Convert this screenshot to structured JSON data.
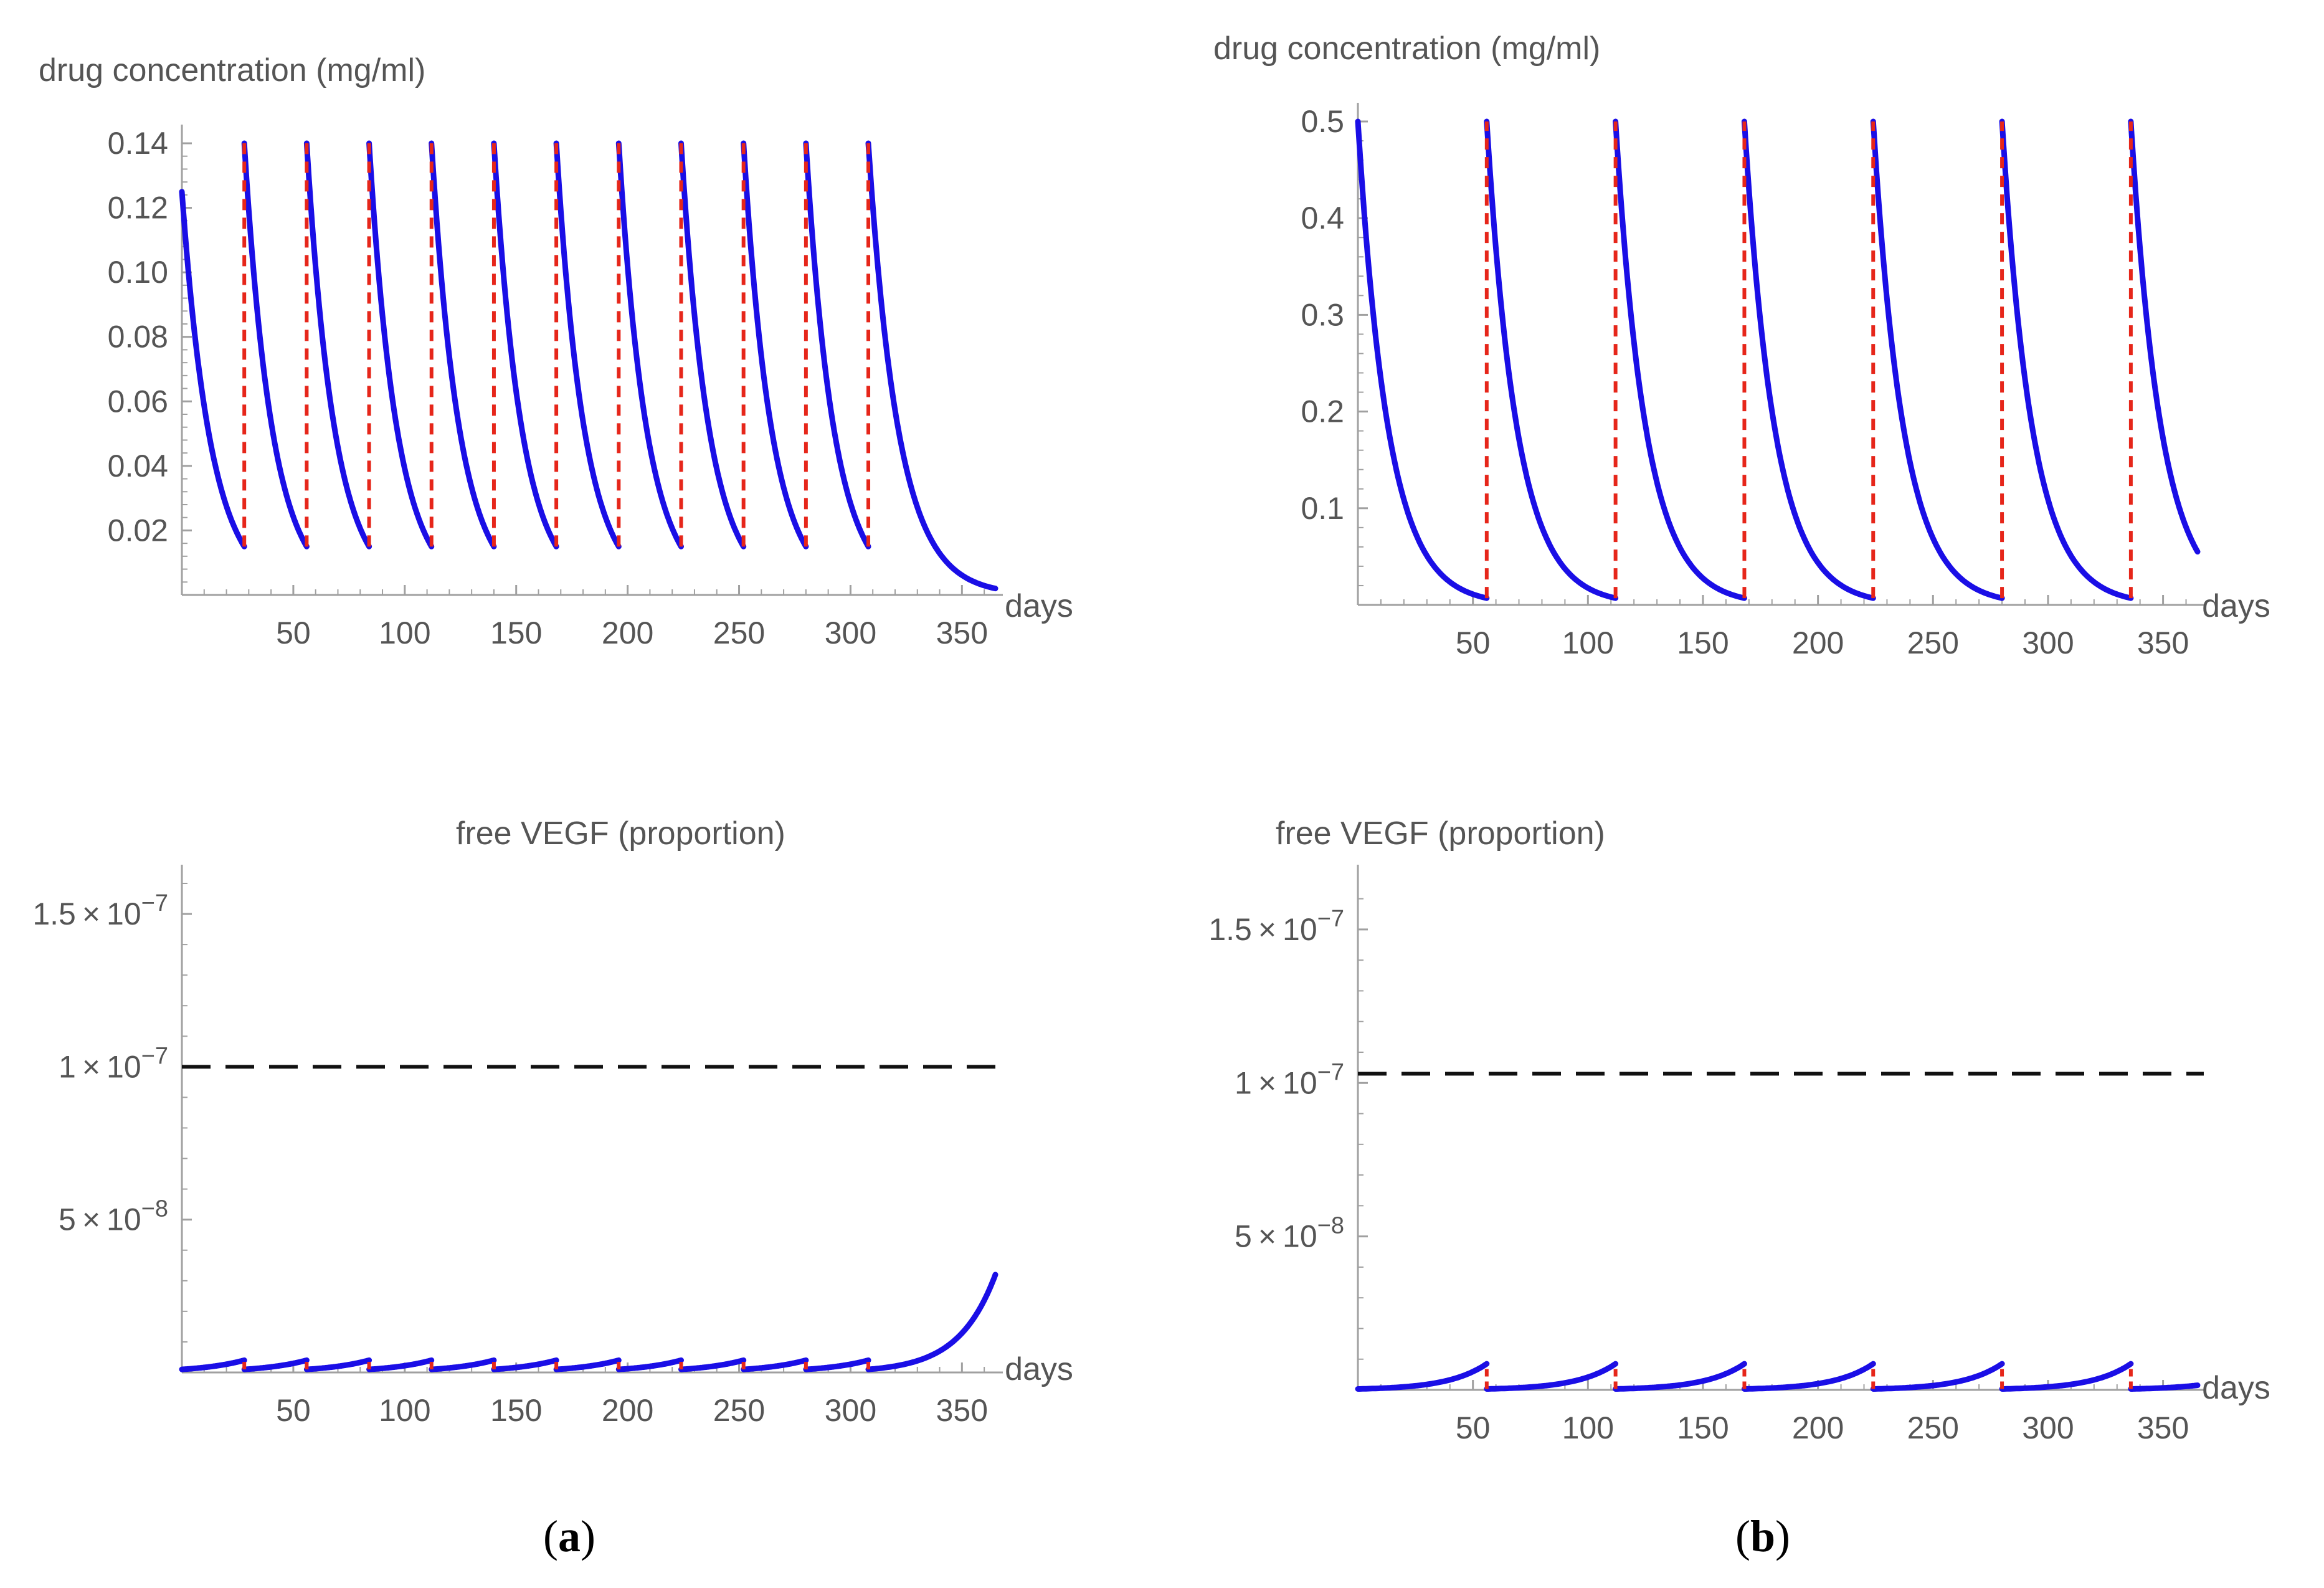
{
  "figure": {
    "panel_labels": [
      "(a)",
      "(b)"
    ]
  },
  "colors": {
    "curve": "#1a0ee6",
    "injection": "#e6261a",
    "threshold": "#111111",
    "axis": "#a0a0a0",
    "text": "#555555"
  },
  "chart_data": [
    {
      "type": "line",
      "panel": "a",
      "title": "drug concentration (mg/ml)",
      "xlabel": "days",
      "ylabel": "drug concentration (mg/ml)",
      "xlim": [
        0,
        365
      ],
      "ylim": [
        0,
        0.14
      ],
      "xticks": [
        50,
        100,
        150,
        200,
        250,
        300,
        350
      ],
      "xticklabels": [
        "50",
        "100",
        "150",
        "200",
        "250",
        "300",
        "350"
      ],
      "yticks": [
        0.02,
        0.04,
        0.06,
        0.08,
        0.1,
        0.12,
        0.14
      ],
      "yticklabels": [
        "0.02",
        "0.04",
        "0.06",
        "0.08",
        "0.10",
        "0.12",
        "0.14"
      ],
      "model": "exponential-decay",
      "initial_value": 0.125,
      "peak_value": 0.14,
      "trough_value": 0.015,
      "end_value": 0.002,
      "dose_interval_days": 28,
      "injection_days": [
        28,
        56,
        84,
        112,
        140,
        168,
        196,
        224,
        252,
        280,
        308
      ]
    },
    {
      "type": "line",
      "panel": "b",
      "title": "drug concentration (mg/ml)",
      "xlabel": "days",
      "ylabel": "drug concentration (mg/ml)",
      "xlim": [
        0,
        365
      ],
      "ylim": [
        0,
        0.5
      ],
      "xticks": [
        50,
        100,
        150,
        200,
        250,
        300,
        350
      ],
      "xticklabels": [
        "50",
        "100",
        "150",
        "200",
        "250",
        "300",
        "350"
      ],
      "yticks": [
        0.1,
        0.2,
        0.3,
        0.4,
        0.5
      ],
      "yticklabels": [
        "0.1",
        "0.2",
        "0.3",
        "0.4",
        "0.5"
      ],
      "model": "exponential-decay",
      "initial_value": 0.5,
      "peak_value": 0.5,
      "trough_value": 0.007,
      "end_value": 0.055,
      "dose_interval_days": 56,
      "injection_days": [
        56,
        112,
        168,
        224,
        280,
        336
      ]
    },
    {
      "type": "line",
      "panel": "a",
      "title": "free VEGF (proportion)",
      "xlabel": "days",
      "ylabel": "free VEGF (proportion)",
      "xlim": [
        0,
        365
      ],
      "ylim": [
        0,
        1.6e-07
      ],
      "xticks": [
        50,
        100,
        150,
        200,
        250,
        300,
        350
      ],
      "xticklabels": [
        "50",
        "100",
        "150",
        "200",
        "250",
        "300",
        "350"
      ],
      "yticks": [
        5e-08,
        1e-07,
        1.5e-07
      ],
      "yticklabels": [
        {
          "mant": "5",
          "exp": "−8"
        },
        {
          "mant": "1",
          "exp": "−7"
        },
        {
          "mant": "1.5",
          "exp": "−7"
        }
      ],
      "model": "inverse-of-drug",
      "threshold": 1e-07,
      "cycle_start_value": 1e-09,
      "cycle_end_value": 4e-09,
      "end_value": 3.2e-08,
      "dose_interval_days": 28,
      "injection_days": [
        28,
        56,
        84,
        112,
        140,
        168,
        196,
        224,
        252,
        280,
        308
      ]
    },
    {
      "type": "line",
      "panel": "b",
      "title": "free VEGF (proportion)",
      "xlabel": "days",
      "ylabel": "free VEGF (proportion)",
      "xlim": [
        0,
        365
      ],
      "ylim": [
        0,
        1.65e-07
      ],
      "xticks": [
        50,
        100,
        150,
        200,
        250,
        300,
        350
      ],
      "xticklabels": [
        "50",
        "100",
        "150",
        "200",
        "250",
        "300",
        "350"
      ],
      "yticks": [
        5e-08,
        1e-07,
        1.5e-07
      ],
      "yticklabels": [
        {
          "mant": "5",
          "exp": "−8"
        },
        {
          "mant": "1",
          "exp": "−7"
        },
        {
          "mant": "1.5",
          "exp": "−7"
        }
      ],
      "model": "inverse-of-drug",
      "threshold": 1.03e-07,
      "cycle_start_value": 3e-10,
      "cycle_end_value": 8.5e-09,
      "end_value": 1.5e-09,
      "dose_interval_days": 56,
      "injection_days": [
        56,
        112,
        168,
        224,
        280,
        336
      ]
    }
  ]
}
